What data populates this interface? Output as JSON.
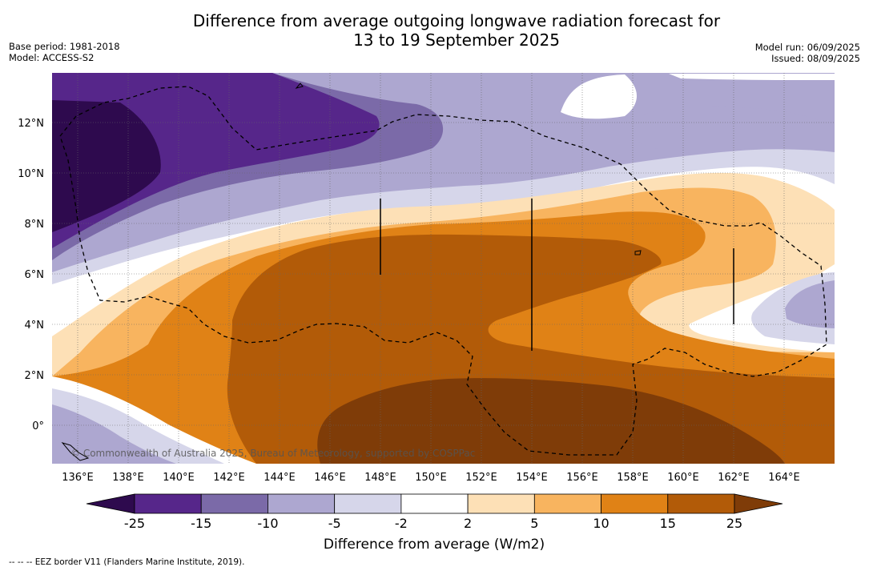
{
  "header": {
    "title_line1": "Difference from average outgoing longwave radiation forecast for",
    "title_line2": "13 to 19 September 2025",
    "base_period": "Base period: 1981-2018",
    "model": "Model: ACCESS-S2",
    "model_run": "Model run: 06/09/2025",
    "issued": "Issued: 08/09/2025"
  },
  "map": {
    "lon_labels": [
      "136°E",
      "138°E",
      "140°E",
      "142°E",
      "144°E",
      "146°E",
      "148°E",
      "150°E",
      "152°E",
      "154°E",
      "156°E",
      "158°E",
      "160°E",
      "162°E",
      "164°E"
    ],
    "lat_labels": [
      "0°",
      "2°N",
      "4°N",
      "6°N",
      "8°N",
      "10°N",
      "12°N"
    ],
    "copyright": "© Commonwealth of Australia 2025, Bureau of Meteorology, supported by COSPPac"
  },
  "colorbar": {
    "ticks": [
      "-25",
      "-15",
      "-10",
      "-5",
      "-2",
      "2",
      "5",
      "10",
      "15",
      "25"
    ],
    "colors": [
      "#2e0a4e",
      "#56268a",
      "#7b6aa8",
      "#ada7d0",
      "#d6d6ea",
      "#ffffff",
      "#fde0b6",
      "#f8b45f",
      "#e08216",
      "#b25b08",
      "#7f3c08"
    ],
    "title": "Difference from average (W/m2)"
  },
  "footnote": "--  --  -- EEZ border V11 (Flanders Marine Institute, 2019)."
}
